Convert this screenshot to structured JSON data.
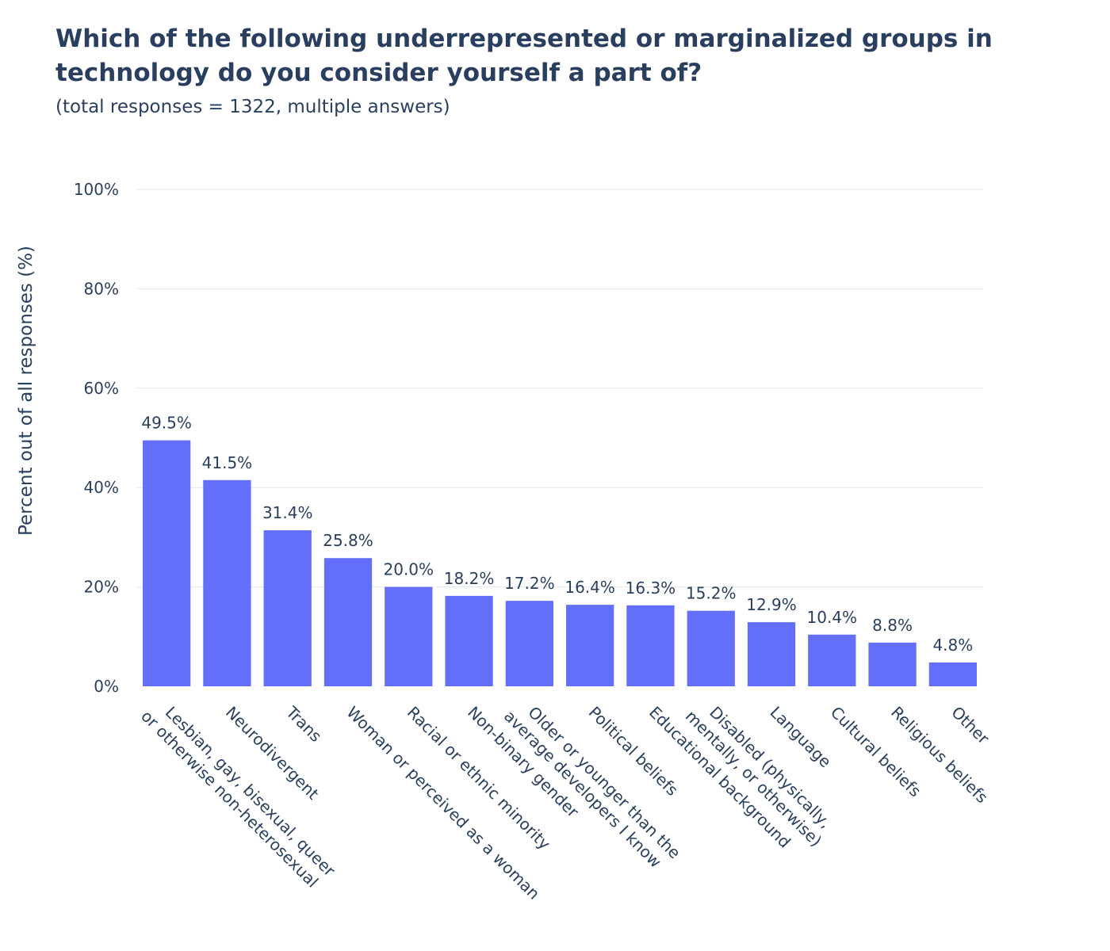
{
  "chart_data": {
    "type": "bar",
    "title": "Which of the following underrepresented or marginalized groups in technology do you consider yourself a part of?",
    "subtitle": "(total responses = 1322, multiple answers)",
    "ylabel": "Percent out of all responses (%)",
    "xlabel": "",
    "ylim": [
      0,
      100
    ],
    "yticks": [
      0,
      20,
      40,
      60,
      80,
      100
    ],
    "ytick_labels": [
      "0%",
      "20%",
      "40%",
      "60%",
      "80%",
      "100%"
    ],
    "grid": true,
    "bar_color": "#636efa",
    "categories": [
      [
        "Lesbian, gay, bisexual, queer",
        "or otherwise non-heterosexual"
      ],
      [
        "Neurodivergent"
      ],
      [
        "Trans"
      ],
      [
        "Woman or perceived as a woman"
      ],
      [
        "Racial or ethnic minority"
      ],
      [
        "Non-binary gender"
      ],
      [
        "Older or younger than the",
        "average developers I know"
      ],
      [
        "Political beliefs"
      ],
      [
        "Educational background"
      ],
      [
        "Disabled (physically,",
        "mentally, or otherwise)"
      ],
      [
        "Language"
      ],
      [
        "Cultural beliefs"
      ],
      [
        "Religious beliefs"
      ],
      [
        "Other"
      ]
    ],
    "values": [
      49.5,
      41.5,
      31.4,
      25.8,
      20.0,
      18.2,
      17.2,
      16.4,
      16.3,
      15.2,
      12.9,
      10.4,
      8.8,
      4.8
    ],
    "value_labels": [
      "49.5%",
      "41.5%",
      "31.4%",
      "25.8%",
      "20.0%",
      "18.2%",
      "17.2%",
      "16.4%",
      "16.3%",
      "15.2%",
      "12.9%",
      "10.4%",
      "8.8%",
      "4.8%"
    ]
  }
}
